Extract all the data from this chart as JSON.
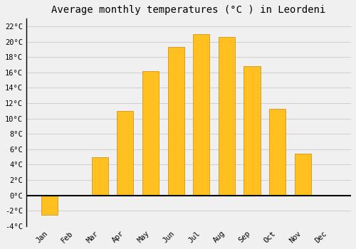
{
  "title": "Average monthly temperatures (°C ) in Leordeni",
  "months": [
    "Jan",
    "Feb",
    "Mar",
    "Apr",
    "May",
    "Jun",
    "Jul",
    "Aug",
    "Sep",
    "Oct",
    "Nov",
    "Dec"
  ],
  "values": [
    -2.5,
    0,
    5.0,
    11.0,
    16.2,
    19.3,
    21.0,
    20.6,
    16.8,
    11.3,
    5.4,
    0
  ],
  "bar_color": "#FFC020",
  "bar_edge_color": "#CC8800",
  "ylim": [
    -4,
    23
  ],
  "yticks": [
    -4,
    -2,
    0,
    2,
    4,
    6,
    8,
    10,
    12,
    14,
    16,
    18,
    20,
    22
  ],
  "ytick_labels": [
    "-4°C",
    "-2°C",
    "0°C",
    "2°C",
    "4°C",
    "6°C",
    "8°C",
    "10°C",
    "12°C",
    "14°C",
    "16°C",
    "18°C",
    "20°C",
    "22°C"
  ],
  "background_color": "#f0f0f0",
  "grid_color": "#d0d0d0",
  "zero_line_color": "#000000",
  "title_fontsize": 10,
  "tick_fontsize": 7.5
}
